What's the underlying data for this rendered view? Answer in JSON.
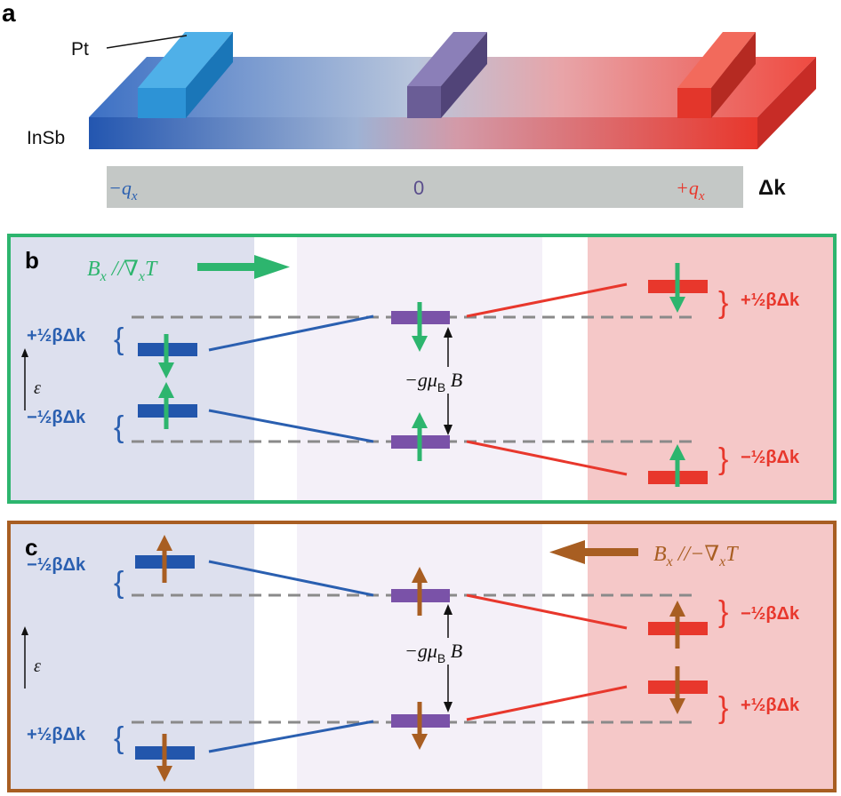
{
  "panels": {
    "a": {
      "letter": "a",
      "pt_label": "Pt",
      "insb_label": "InSb",
      "axis": {
        "left": "−q",
        "left_sub": "x",
        "center": "0",
        "right": "+q",
        "right_sub": "x",
        "dk": "Δk"
      }
    },
    "b": {
      "letter": "b",
      "field": {
        "B": "B",
        "B_sub": "x",
        "rel": " //∇",
        "rel_sub": "x",
        "T": "T"
      },
      "upper_left": "+½βΔk",
      "lower_left": "−½βΔk",
      "upper_right": "+½βΔk",
      "lower_right": "−½βΔk",
      "zeeman": {
        "pre": "−gμ",
        "sub": "B",
        "post": " B"
      },
      "epsilon": "ε"
    },
    "c": {
      "letter": "c",
      "field": {
        "B": "B",
        "B_sub": "x",
        "rel": " //−∇",
        "rel_sub": "x",
        "T": "T"
      },
      "upper_left": "−½βΔk",
      "lower_left": "+½βΔk",
      "upper_right": "−½βΔk",
      "lower_right": "+½βΔk",
      "zeeman": {
        "pre": "−gμ",
        "sub": "B",
        "post": " B"
      },
      "epsilon": "ε"
    }
  },
  "colors": {
    "blue": "#2a5fb0",
    "purple": "#7a52a8",
    "red": "#e8372c",
    "green": "#2db56e",
    "brown": "#a85e22",
    "gray_bar": "#c4c8c6"
  }
}
